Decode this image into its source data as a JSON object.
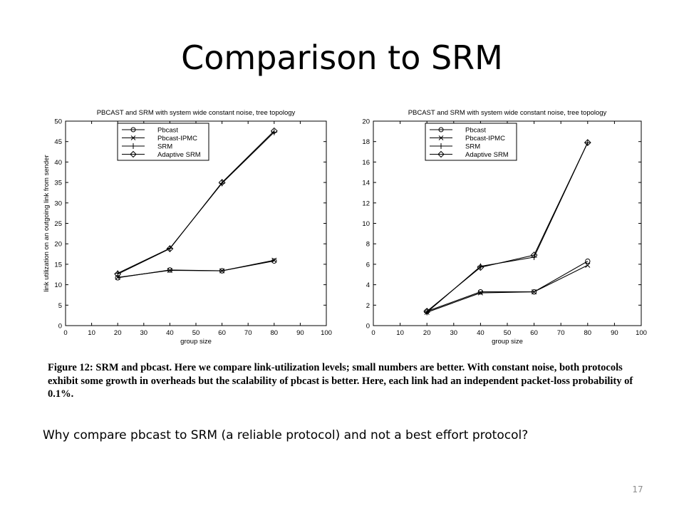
{
  "slide": {
    "title": "Comparison to SRM",
    "caption": "Figure 12: SRM and pbcast. Here we compare link-utilization levels; small numbers are better. With constant noise, both protocols exhibit some growth in overheads but the scalability of pbcast is better. Here, each link had an independent packet-loss probability of 0.1%.",
    "question": "Why compare pbcast to SRM (a reliable protocol) and not a best effort protocol?",
    "page_number": "17"
  },
  "chart_data": [
    {
      "type": "line",
      "title": "PBCAST and SRM with system wide constant noise, tree topology",
      "xlabel": "group size",
      "ylabel": "link utilization on an outgoing link from sender",
      "xlim": [
        0,
        100
      ],
      "ylim": [
        0,
        50
      ],
      "xticks": [
        0,
        10,
        20,
        30,
        40,
        50,
        60,
        70,
        80,
        90,
        100
      ],
      "yticks": [
        0,
        5,
        10,
        15,
        20,
        25,
        30,
        35,
        40,
        45,
        50
      ],
      "grid": false,
      "legend": "top-left",
      "x": [
        20,
        40,
        60,
        80
      ],
      "series": [
        {
          "name": "Pbcast",
          "marker": "circle",
          "values": [
            11.7,
            13.6,
            13.4,
            15.8
          ]
        },
        {
          "name": "Pbcast-IPMC",
          "marker": "x",
          "values": [
            11.8,
            13.5,
            13.4,
            16.0
          ]
        },
        {
          "name": "SRM",
          "marker": "plus",
          "values": [
            12.8,
            18.9,
            34.8,
            47.3
          ]
        },
        {
          "name": "Adaptive SRM",
          "marker": "diamond",
          "values": [
            12.6,
            18.8,
            35.0,
            47.6
          ]
        }
      ]
    },
    {
      "type": "line",
      "title": "PBCAST and SRM with system wide constant noise, tree topology",
      "xlabel": "group size",
      "ylabel": "",
      "xlim": [
        0,
        100
      ],
      "ylim": [
        0,
        20
      ],
      "xticks": [
        0,
        10,
        20,
        30,
        40,
        50,
        60,
        70,
        80,
        90,
        100
      ],
      "yticks": [
        0,
        2,
        4,
        6,
        8,
        10,
        12,
        14,
        16,
        18,
        20
      ],
      "grid": false,
      "legend": "top-left",
      "x": [
        20,
        40,
        60,
        80
      ],
      "series": [
        {
          "name": "Pbcast",
          "marker": "circle",
          "values": [
            1.4,
            3.3,
            3.3,
            6.3
          ]
        },
        {
          "name": "Pbcast-IPMC",
          "marker": "x",
          "values": [
            1.3,
            3.2,
            3.3,
            5.9
          ]
        },
        {
          "name": "SRM",
          "marker": "plus",
          "values": [
            1.3,
            5.8,
            6.7,
            17.9
          ]
        },
        {
          "name": "Adaptive SRM",
          "marker": "diamond",
          "values": [
            1.4,
            5.7,
            6.9,
            17.9
          ]
        }
      ]
    }
  ]
}
